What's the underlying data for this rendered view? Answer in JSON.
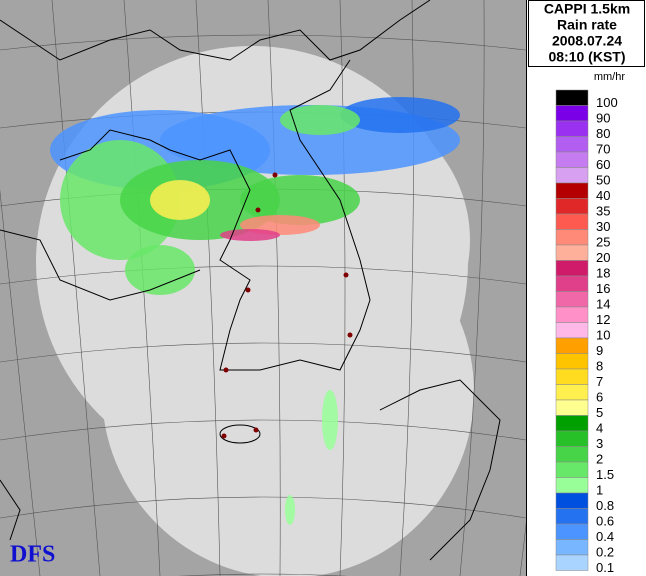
{
  "header": {
    "lines": [
      "CAPPI 1.5km",
      "Rain rate",
      "2008.07.24",
      "08:10 (KST)"
    ]
  },
  "legend": {
    "unit": "mm/hr",
    "entries": [
      {
        "label": "100",
        "color": "#000000"
      },
      {
        "label": "90",
        "color": "#7a00e8"
      },
      {
        "label": "80",
        "color": "#9a30f0"
      },
      {
        "label": "70",
        "color": "#b25ef0"
      },
      {
        "label": "60",
        "color": "#c57cf0"
      },
      {
        "label": "50",
        "color": "#d8a0f0"
      },
      {
        "label": "40",
        "color": "#b40000"
      },
      {
        "label": "35",
        "color": "#e02828"
      },
      {
        "label": "30",
        "color": "#ff5a50"
      },
      {
        "label": "25",
        "color": "#ff8a78"
      },
      {
        "label": "20",
        "color": "#ffb09a"
      },
      {
        "label": "18",
        "color": "#d01a6a"
      },
      {
        "label": "16",
        "color": "#e0408a"
      },
      {
        "label": "14",
        "color": "#f068a8"
      },
      {
        "label": "12",
        "color": "#ff90c8"
      },
      {
        "label": "10",
        "color": "#ffb8e8"
      },
      {
        "label": "9",
        "color": "#ffa000"
      },
      {
        "label": "8",
        "color": "#ffc400"
      },
      {
        "label": "7",
        "color": "#ffdc20"
      },
      {
        "label": "6",
        "color": "#fff050"
      },
      {
        "label": "5",
        "color": "#ffff90"
      },
      {
        "label": "4",
        "color": "#00a000"
      },
      {
        "label": "3",
        "color": "#28c028"
      },
      {
        "label": "2",
        "color": "#48d448"
      },
      {
        "label": "1.5",
        "color": "#68e868"
      },
      {
        "label": "1",
        "color": "#98ff98"
      },
      {
        "label": "0.8",
        "color": "#0050e0"
      },
      {
        "label": "0.6",
        "color": "#2472f0"
      },
      {
        "label": "0.4",
        "color": "#4c94ff"
      },
      {
        "label": "0.2",
        "color": "#78b6ff"
      },
      {
        "label": "0.1",
        "color": "#a8d4ff"
      }
    ]
  },
  "watermark": "DFS"
}
